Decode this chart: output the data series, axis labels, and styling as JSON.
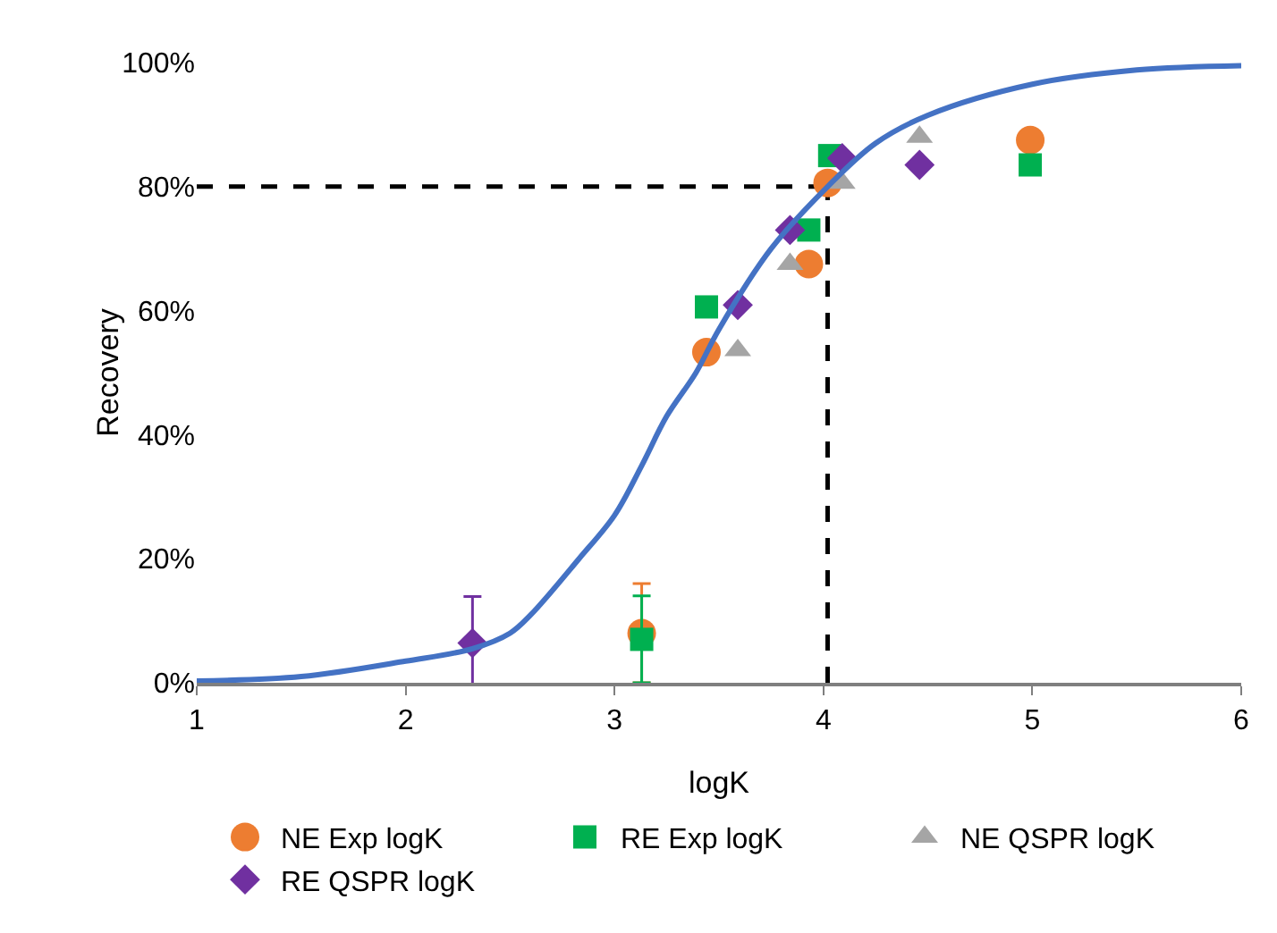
{
  "chart_data": {
    "type": "scatter",
    "xlabel": "logK",
    "ylabel": "Recovery",
    "xlim": [
      1,
      6
    ],
    "xticks": [
      1,
      2,
      3,
      4,
      5,
      6
    ],
    "ylim": [
      0,
      100
    ],
    "yticks": [
      {
        "value": 0,
        "label": "0%"
      },
      {
        "value": 20,
        "label": "20%"
      },
      {
        "value": 40,
        "label": "40%"
      },
      {
        "value": 60,
        "label": "60%"
      },
      {
        "value": 80,
        "label": "80%"
      },
      {
        "value": 100,
        "label": "100%"
      }
    ],
    "grid": false,
    "legend": "bottom",
    "series": [
      {
        "name": "NE Exp logK",
        "color": "#ed7d31",
        "marker": "circle",
        "x": [
          3.13,
          3.44,
          3.93,
          4.02,
          4.99
        ],
        "values": [
          8,
          53.3,
          67.5,
          80.6,
          87.5
        ],
        "errors": [
          8,
          null,
          null,
          null,
          null
        ]
      },
      {
        "name": "RE Exp logK",
        "color": "#00b050",
        "marker": "square",
        "x": [
          3.13,
          3.44,
          3.93,
          4.03,
          4.99
        ],
        "values": [
          7,
          60.6,
          73,
          85,
          83.5
        ],
        "errors": [
          7,
          null,
          null,
          null,
          null
        ]
      },
      {
        "name": "NE QSPR logK",
        "color": "#a5a5a5",
        "marker": "triangle",
        "x": [
          3.59,
          3.84,
          4.09,
          4.46
        ],
        "values": [
          53.6,
          67.5,
          80.6,
          88
        ]
      },
      {
        "name": "RE QSPR logK",
        "color": "#7030a0",
        "marker": "diamond",
        "x": [
          2.32,
          3.59,
          3.84,
          4.09,
          4.46
        ],
        "values": [
          6.4,
          60.9,
          73,
          84.6,
          83.5
        ],
        "errors": [
          7.5,
          null,
          null,
          null,
          null
        ]
      },
      {
        "type": "line",
        "color": "#4472c4",
        "marker": "none",
        "x": [
          1,
          1.5,
          2,
          2.32,
          2.5,
          2.6,
          2.83,
          3,
          3.13,
          3.25,
          3.39,
          3.5,
          3.75,
          4.02,
          4.25,
          4.5,
          5,
          5.5,
          6
        ],
        "values": [
          0.3,
          1,
          3.5,
          5.5,
          8,
          11,
          20,
          27,
          35,
          43,
          50,
          57,
          70,
          80,
          87,
          91.5,
          96.5,
          98.8,
          99.5
        ]
      }
    ],
    "ref_lines": [
      {
        "axis": "y",
        "value": 80,
        "color": "#000000",
        "line_style": "dashed"
      },
      {
        "axis": "x",
        "value": 4.02,
        "color": "#000000",
        "line_style": "dashed"
      }
    ]
  }
}
